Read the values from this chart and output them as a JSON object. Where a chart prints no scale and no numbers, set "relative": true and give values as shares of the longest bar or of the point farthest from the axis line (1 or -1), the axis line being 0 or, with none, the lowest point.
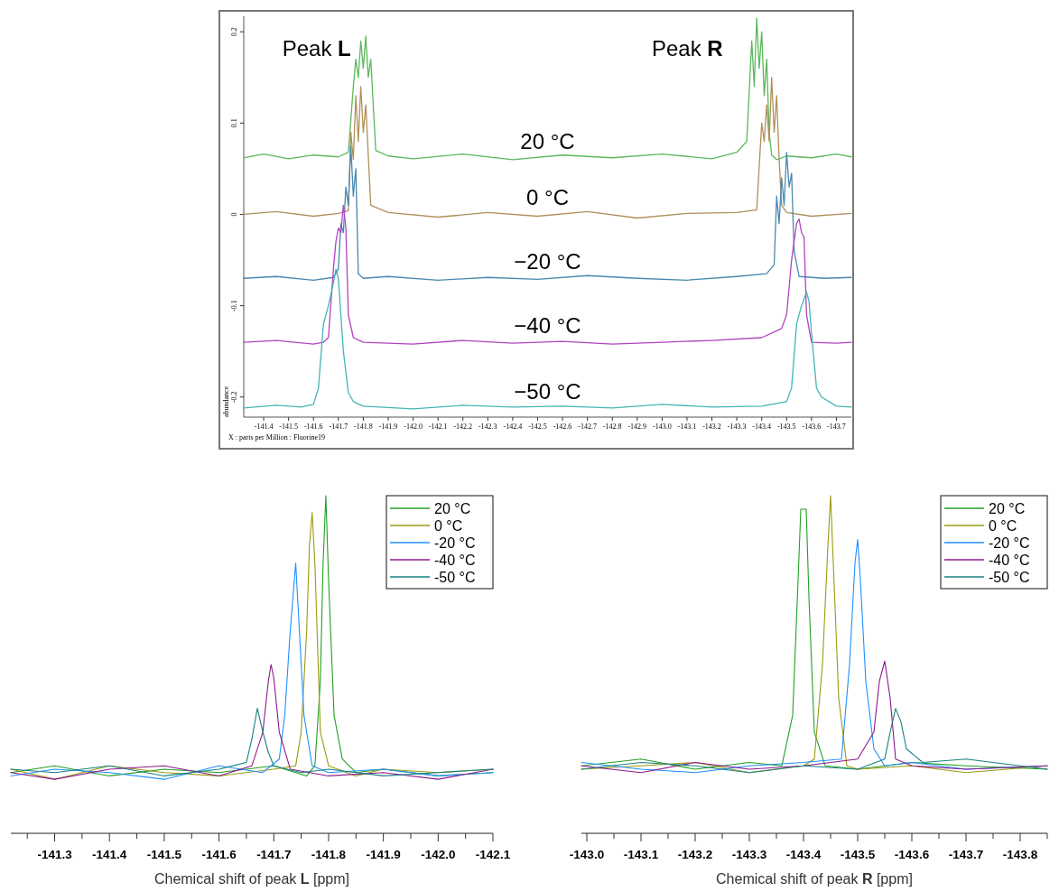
{
  "chart_data": [
    {
      "type": "line",
      "xlabel": "X : parts per Million : Fluorine19",
      "ylabel": "abundance",
      "xlim": [
        -141.32,
        -143.76
      ],
      "ylim": [
        -0.222,
        0.217
      ],
      "xticks": [
        -141.4,
        -141.5,
        -141.6,
        -141.7,
        -141.8,
        -141.9,
        {
          "value": -142,
          "label": "-142.0"
        },
        -142.1,
        -142.2,
        -142.3,
        -142.4,
        -142.5,
        -142.6,
        -142.7,
        -142.8,
        -142.9,
        {
          "value": -143,
          "label": "-143.0"
        },
        -143.1,
        -143.2,
        -143.3,
        -143.4,
        -143.5,
        -143.6,
        -143.7
      ],
      "yticks": [
        -0.2,
        -0.1,
        0,
        0.1,
        0.2
      ],
      "legend": false,
      "annotations": [
        "Peak L",
        "Peak R"
      ],
      "series": [
        {
          "name": "20 °C",
          "color": "#5cb85c",
          "x": [
            -141.32,
            -141.4,
            -141.5,
            -141.6,
            -141.7,
            -141.74,
            -141.76,
            -141.77,
            -141.78,
            -141.79,
            -141.8,
            -141.81,
            -141.82,
            -141.83,
            -141.85,
            -141.9,
            -142,
            -142.2,
            -142.4,
            -142.6,
            -142.8,
            -143,
            -143.2,
            -143.3,
            -143.34,
            -143.36,
            -143.37,
            -143.38,
            -143.39,
            -143.4,
            -143.41,
            -143.42,
            -143.43,
            -143.44,
            -143.46,
            -143.5,
            -143.6,
            -143.7,
            -143.76
          ],
          "values": [
            0.062,
            0.066,
            0.061,
            0.065,
            0.063,
            0.068,
            0.14,
            0.17,
            0.15,
            0.19,
            0.16,
            0.195,
            0.15,
            0.17,
            0.07,
            0.064,
            0.061,
            0.066,
            0.06,
            0.065,
            0.062,
            0.066,
            0.061,
            0.068,
            0.08,
            0.19,
            0.14,
            0.215,
            0.16,
            0.2,
            0.13,
            0.17,
            0.09,
            0.065,
            0.06,
            0.064,
            0.062,
            0.066,
            0.063
          ]
        },
        {
          "name": "0 °C",
          "color": "#b0905a",
          "x": [
            -141.32,
            -141.45,
            -141.6,
            -141.7,
            -141.74,
            -141.75,
            -141.76,
            -141.77,
            -141.78,
            -141.79,
            -141.8,
            -141.81,
            -141.83,
            -141.9,
            -142.1,
            -142.3,
            -142.5,
            -142.7,
            -142.9,
            -143.1,
            -143.3,
            -143.38,
            -143.4,
            -143.41,
            -143.42,
            -143.43,
            -143.44,
            -143.45,
            -143.46,
            -143.47,
            -143.48,
            -143.5,
            -143.6,
            -143.76
          ],
          "values": [
            0,
            0.003,
            -0.002,
            0.001,
            0.004,
            0.09,
            0.06,
            0.13,
            0.08,
            0.14,
            0.09,
            0.12,
            0.01,
            0.002,
            -0.003,
            0.002,
            -0.002,
            0.003,
            -0.004,
            0.001,
            0.002,
            0.005,
            0.1,
            0.08,
            0.12,
            0.08,
            0.15,
            0.09,
            0.13,
            0.06,
            0.01,
            0.002,
            -0.002,
            0.001
          ]
        },
        {
          "name": "−20 °C",
          "color": "#4a88b0",
          "x": [
            -141.32,
            -141.45,
            -141.6,
            -141.68,
            -141.7,
            -141.71,
            -141.72,
            -141.73,
            -141.74,
            -141.75,
            -141.76,
            -141.77,
            -141.78,
            -141.8,
            -141.9,
            -142.1,
            -142.3,
            -142.5,
            -142.7,
            -142.9,
            -143.1,
            -143.3,
            -143.42,
            -143.45,
            -143.46,
            -143.47,
            -143.48,
            -143.49,
            -143.5,
            -143.51,
            -143.52,
            -143.53,
            -143.55,
            -143.65,
            -143.76
          ],
          "values": [
            -0.07,
            -0.068,
            -0.072,
            -0.069,
            -0.06,
            -0.01,
            -0.02,
            0.03,
            0.01,
            0.075,
            0.02,
            0.05,
            -0.065,
            -0.07,
            -0.068,
            -0.072,
            -0.069,
            -0.071,
            -0.067,
            -0.07,
            -0.072,
            -0.068,
            -0.065,
            -0.055,
            0.02,
            -0.01,
            0.04,
            0.01,
            0.068,
            0.03,
            0.045,
            -0.04,
            -0.068,
            -0.07,
            -0.069
          ]
        },
        {
          "name": "−40 °C",
          "color": "#b044c0",
          "x": [
            -141.32,
            -141.45,
            -141.6,
            -141.64,
            -141.66,
            -141.68,
            -141.69,
            -141.7,
            -141.71,
            -141.72,
            -141.73,
            -141.74,
            -141.76,
            -141.8,
            -142,
            -142.2,
            -142.4,
            -142.6,
            -142.8,
            -143,
            -143.2,
            -143.4,
            -143.48,
            -143.5,
            -143.52,
            -143.53,
            -143.54,
            -143.55,
            -143.56,
            -143.57,
            -143.58,
            -143.6,
            -143.7,
            -143.76
          ],
          "values": [
            -0.14,
            -0.138,
            -0.142,
            -0.14,
            -0.135,
            -0.06,
            -0.03,
            -0.015,
            -0.02,
            0.01,
            -0.015,
            -0.11,
            -0.135,
            -0.14,
            -0.142,
            -0.138,
            -0.141,
            -0.139,
            -0.142,
            -0.14,
            -0.138,
            -0.135,
            -0.125,
            -0.11,
            -0.05,
            -0.03,
            -0.01,
            -0.005,
            -0.02,
            -0.025,
            -0.11,
            -0.14,
            -0.141,
            -0.14
          ]
        },
        {
          "name": "−50 °C",
          "color": "#45b5b5",
          "x": [
            -141.32,
            -141.45,
            -141.55,
            -141.6,
            -141.62,
            -141.64,
            -141.66,
            -141.68,
            -141.69,
            -141.7,
            -141.72,
            -141.74,
            -141.76,
            -141.8,
            -142,
            -142.2,
            -142.4,
            -142.6,
            -142.8,
            -143,
            -143.2,
            -143.4,
            -143.5,
            -143.52,
            -143.54,
            -143.56,
            -143.58,
            -143.59,
            -143.6,
            -143.62,
            -143.64,
            -143.7,
            -143.76
          ],
          "values": [
            -0.212,
            -0.209,
            -0.211,
            -0.208,
            -0.19,
            -0.12,
            -0.1,
            -0.075,
            -0.06,
            -0.07,
            -0.15,
            -0.195,
            -0.205,
            -0.21,
            -0.213,
            -0.209,
            -0.211,
            -0.21,
            -0.212,
            -0.208,
            -0.211,
            -0.21,
            -0.205,
            -0.19,
            -0.12,
            -0.1,
            -0.085,
            -0.095,
            -0.13,
            -0.19,
            -0.2,
            -0.21,
            -0.211
          ]
        }
      ]
    },
    {
      "type": "line",
      "relative": true,
      "xlabel": "Chemical shift of peak L [ppm]",
      "xlim": [
        -141.22,
        -142.1
      ],
      "tick_labels": "x",
      "legend": "top right",
      "xticks": [
        {
          "value": -141.25,
          "label": null
        },
        -141.3,
        {
          "value": -141.35,
          "label": null
        },
        -141.4,
        {
          "value": -141.45,
          "label": null
        },
        -141.5,
        {
          "value": -141.55,
          "label": null
        },
        -141.6,
        {
          "value": -141.65,
          "label": null
        },
        -141.7,
        {
          "value": -141.75,
          "label": null
        },
        -141.8,
        {
          "value": -141.85,
          "label": null
        },
        -141.9,
        {
          "value": -141.95,
          "label": null
        },
        {
          "value": -142,
          "label": "-142.0"
        },
        {
          "value": -142.05,
          "label": null
        },
        -142.1
      ],
      "series": [
        {
          "name": "20 °C",
          "color": "#22a022",
          "x": [
            -141.22,
            -141.3,
            -141.4,
            -141.5,
            -141.6,
            -141.7,
            -141.76,
            -141.775,
            -141.785,
            -141.79,
            -141.795,
            -141.8,
            -141.81,
            -141.825,
            -141.85,
            -141.9,
            -142,
            -142.1
          ],
          "values": [
            0.18,
            0.2,
            0.17,
            0.19,
            0.18,
            0.2,
            0.17,
            0.2,
            0.45,
            0.8,
            1,
            0.75,
            0.35,
            0.22,
            0.18,
            0.19,
            0.17,
            0.18
          ]
        },
        {
          "name": "0 °C",
          "color": "#9a9a10",
          "x": [
            -141.22,
            -141.3,
            -141.4,
            -141.5,
            -141.6,
            -141.7,
            -141.74,
            -141.75,
            -141.76,
            -141.765,
            -141.77,
            -141.775,
            -141.785,
            -141.8,
            -141.85,
            -141.9,
            -142,
            -142.1
          ],
          "values": [
            0.19,
            0.16,
            0.2,
            0.18,
            0.17,
            0.19,
            0.2,
            0.3,
            0.6,
            0.85,
            0.95,
            0.8,
            0.3,
            0.2,
            0.17,
            0.19,
            0.18,
            0.19
          ]
        },
        {
          "name": "-20 °C",
          "color": "#1e90ff",
          "x": [
            -141.22,
            -141.3,
            -141.4,
            -141.5,
            -141.6,
            -141.68,
            -141.71,
            -141.72,
            -141.73,
            -141.74,
            -141.745,
            -141.755,
            -141.77,
            -141.8,
            -141.9,
            -142,
            -142.1
          ],
          "values": [
            0.17,
            0.19,
            0.18,
            0.16,
            0.2,
            0.18,
            0.22,
            0.35,
            0.6,
            0.8,
            0.65,
            0.35,
            0.2,
            0.18,
            0.19,
            0.17,
            0.18
          ]
        },
        {
          "name": "-40 °C",
          "color": "#8b1a8b",
          "x": [
            -141.22,
            -141.3,
            -141.4,
            -141.5,
            -141.6,
            -141.66,
            -141.68,
            -141.69,
            -141.695,
            -141.7,
            -141.71,
            -141.73,
            -141.8,
            -141.9,
            -142,
            -142.1
          ],
          "values": [
            0.18,
            0.16,
            0.19,
            0.2,
            0.17,
            0.2,
            0.3,
            0.45,
            0.5,
            0.46,
            0.3,
            0.19,
            0.17,
            0.18,
            0.16,
            0.19
          ]
        },
        {
          "name": "-50 °C",
          "color": "#1a8080",
          "x": [
            -141.22,
            -141.3,
            -141.4,
            -141.5,
            -141.6,
            -141.65,
            -141.66,
            -141.67,
            -141.68,
            -141.69,
            -141.7,
            -141.75,
            -141.8,
            -141.9,
            -142,
            -142.1
          ],
          "values": [
            0.19,
            0.18,
            0.2,
            0.17,
            0.19,
            0.21,
            0.28,
            0.37,
            0.3,
            0.24,
            0.2,
            0.18,
            0.19,
            0.17,
            0.18,
            0.19
          ]
        }
      ]
    },
    {
      "type": "line",
      "relative": true,
      "xlabel": "Chemical shift of peak R [ppm]",
      "xlim": [
        -142.99,
        -143.85
      ],
      "tick_labels": "x",
      "legend": "top right",
      "xticks": [
        {
          "value": -143,
          "label": "-143.0"
        },
        {
          "value": -143.05,
          "label": null
        },
        -143.1,
        {
          "value": -143.15,
          "label": null
        },
        -143.2,
        {
          "value": -143.25,
          "label": null
        },
        -143.3,
        {
          "value": -143.35,
          "label": null
        },
        -143.4,
        {
          "value": -143.45,
          "label": null
        },
        -143.5,
        {
          "value": -143.55,
          "label": null
        },
        -143.6,
        {
          "value": -143.65,
          "label": null
        },
        -143.7,
        {
          "value": -143.75,
          "label": null
        },
        -143.8,
        {
          "value": -143.85,
          "label": null
        }
      ],
      "series": [
        {
          "name": "20 °C",
          "color": "#22a022",
          "x": [
            -142.99,
            -143.1,
            -143.2,
            -143.3,
            -143.36,
            -143.38,
            -143.39,
            -143.395,
            -143.405,
            -143.41,
            -143.42,
            -143.44,
            -143.5,
            -143.6,
            -143.7,
            -143.85
          ],
          "values": [
            0.2,
            0.22,
            0.19,
            0.21,
            0.2,
            0.35,
            0.75,
            0.96,
            0.96,
            0.7,
            0.3,
            0.2,
            0.19,
            0.21,
            0.2,
            0.19
          ]
        },
        {
          "name": "0 °C",
          "color": "#9a9a10",
          "x": [
            -142.99,
            -143.1,
            -143.2,
            -143.3,
            -143.4,
            -143.42,
            -143.435,
            -143.445,
            -143.45,
            -143.455,
            -143.465,
            -143.48,
            -143.5,
            -143.6,
            -143.7,
            -143.85
          ],
          "values": [
            0.19,
            0.2,
            0.21,
            0.18,
            0.2,
            0.22,
            0.5,
            0.85,
            1,
            0.8,
            0.4,
            0.2,
            0.19,
            0.2,
            0.18,
            0.2
          ]
        },
        {
          "name": "-20 °C",
          "color": "#1e90ff",
          "x": [
            -142.99,
            -143.1,
            -143.2,
            -143.3,
            -143.4,
            -143.47,
            -143.485,
            -143.495,
            -143.5,
            -143.505,
            -143.515,
            -143.53,
            -143.55,
            -143.6,
            -143.7,
            -143.85
          ],
          "values": [
            0.21,
            0.19,
            0.18,
            0.2,
            0.21,
            0.22,
            0.5,
            0.8,
            0.87,
            0.75,
            0.45,
            0.25,
            0.2,
            0.21,
            0.19,
            0.2
          ]
        },
        {
          "name": "-40 °C",
          "color": "#8b1a8b",
          "x": [
            -142.99,
            -143.1,
            -143.2,
            -143.3,
            -143.4,
            -143.5,
            -143.53,
            -143.54,
            -143.55,
            -143.56,
            -143.57,
            -143.6,
            -143.7,
            -143.85
          ],
          "values": [
            0.2,
            0.18,
            0.21,
            0.19,
            0.2,
            0.22,
            0.3,
            0.45,
            0.51,
            0.4,
            0.22,
            0.2,
            0.19,
            0.2
          ]
        },
        {
          "name": "-50 °C",
          "color": "#1a8080",
          "x": [
            -142.99,
            -143.1,
            -143.2,
            -143.3,
            -143.4,
            -143.5,
            -143.55,
            -143.56,
            -143.57,
            -143.58,
            -143.59,
            -143.62,
            -143.7,
            -143.85
          ],
          "values": [
            0.19,
            0.21,
            0.2,
            0.18,
            0.2,
            0.19,
            0.22,
            0.3,
            0.37,
            0.33,
            0.25,
            0.21,
            0.22,
            0.19
          ]
        }
      ]
    }
  ]
}
